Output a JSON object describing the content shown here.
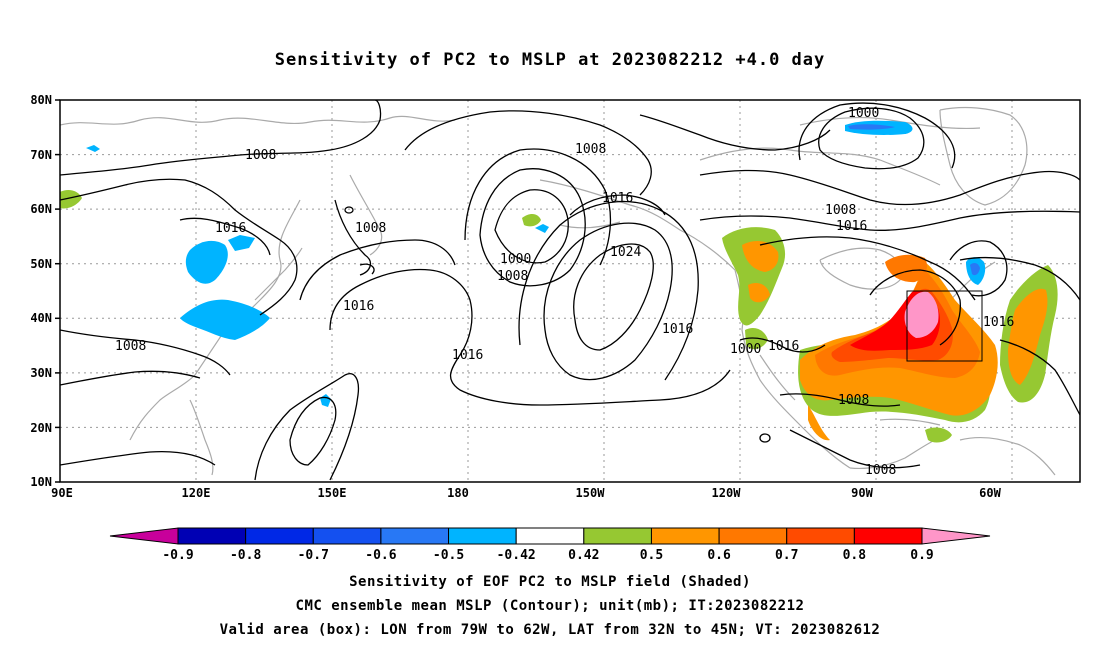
{
  "title": "Sensitivity of PC2 to MSLP at 2023082212 +4.0 day",
  "y_axis_labels": [
    "80N",
    "70N",
    "60N",
    "50N",
    "40N",
    "30N",
    "20N",
    "10N"
  ],
  "x_axis_labels": [
    "90E",
    "120E",
    "150E",
    "180",
    "150W",
    "120W",
    "90W",
    "60W"
  ],
  "contour_labels": [
    {
      "id": "c1",
      "text": "1008"
    },
    {
      "id": "c2",
      "text": "1016"
    },
    {
      "id": "c3",
      "text": "1008"
    },
    {
      "id": "c4",
      "text": "1008"
    },
    {
      "id": "c5",
      "text": "1016"
    },
    {
      "id": "c6",
      "text": "1016"
    },
    {
      "id": "c7",
      "text": "1008"
    },
    {
      "id": "c8",
      "text": "1016"
    },
    {
      "id": "c9",
      "text": "1000"
    },
    {
      "id": "c10",
      "text": "1008"
    },
    {
      "id": "c11",
      "text": "1024"
    },
    {
      "id": "c12",
      "text": "1016"
    },
    {
      "id": "c13",
      "text": "1000"
    },
    {
      "id": "c14",
      "text": "1008"
    },
    {
      "id": "c15",
      "text": "1016"
    },
    {
      "id": "c16",
      "text": "1000"
    },
    {
      "id": "c17",
      "text": "1016"
    },
    {
      "id": "c18",
      "text": "1016"
    },
    {
      "id": "c19",
      "text": "1008"
    },
    {
      "id": "c20",
      "text": "1008"
    }
  ],
  "colorbar": {
    "labels": [
      "-0.9",
      "-0.8",
      "-0.7",
      "-0.6",
      "-0.5",
      "-0.42",
      "0.42",
      "0.5",
      "0.6",
      "0.7",
      "0.8",
      "0.9"
    ],
    "colors": [
      "#0000b4",
      "#0028e6",
      "#1450f0",
      "#2878f5",
      "#00b4ff",
      "#ffffff",
      "#96c832",
      "#ff9600",
      "#ff7800",
      "#ff4b00",
      "#ff0000"
    ],
    "low_end_color": "#c8009b",
    "high_end_color": "#ff96c8"
  },
  "footer": {
    "line1": "Sensitivity of EOF PC2 to MSLP field (Shaded)",
    "line2": "CMC ensemble mean MSLP (Contour); unit(mb); IT:2023082212",
    "line3": "Valid area (box): LON from 79W to 62W, LAT from 32N to 45N; VT: 2023082612"
  }
}
